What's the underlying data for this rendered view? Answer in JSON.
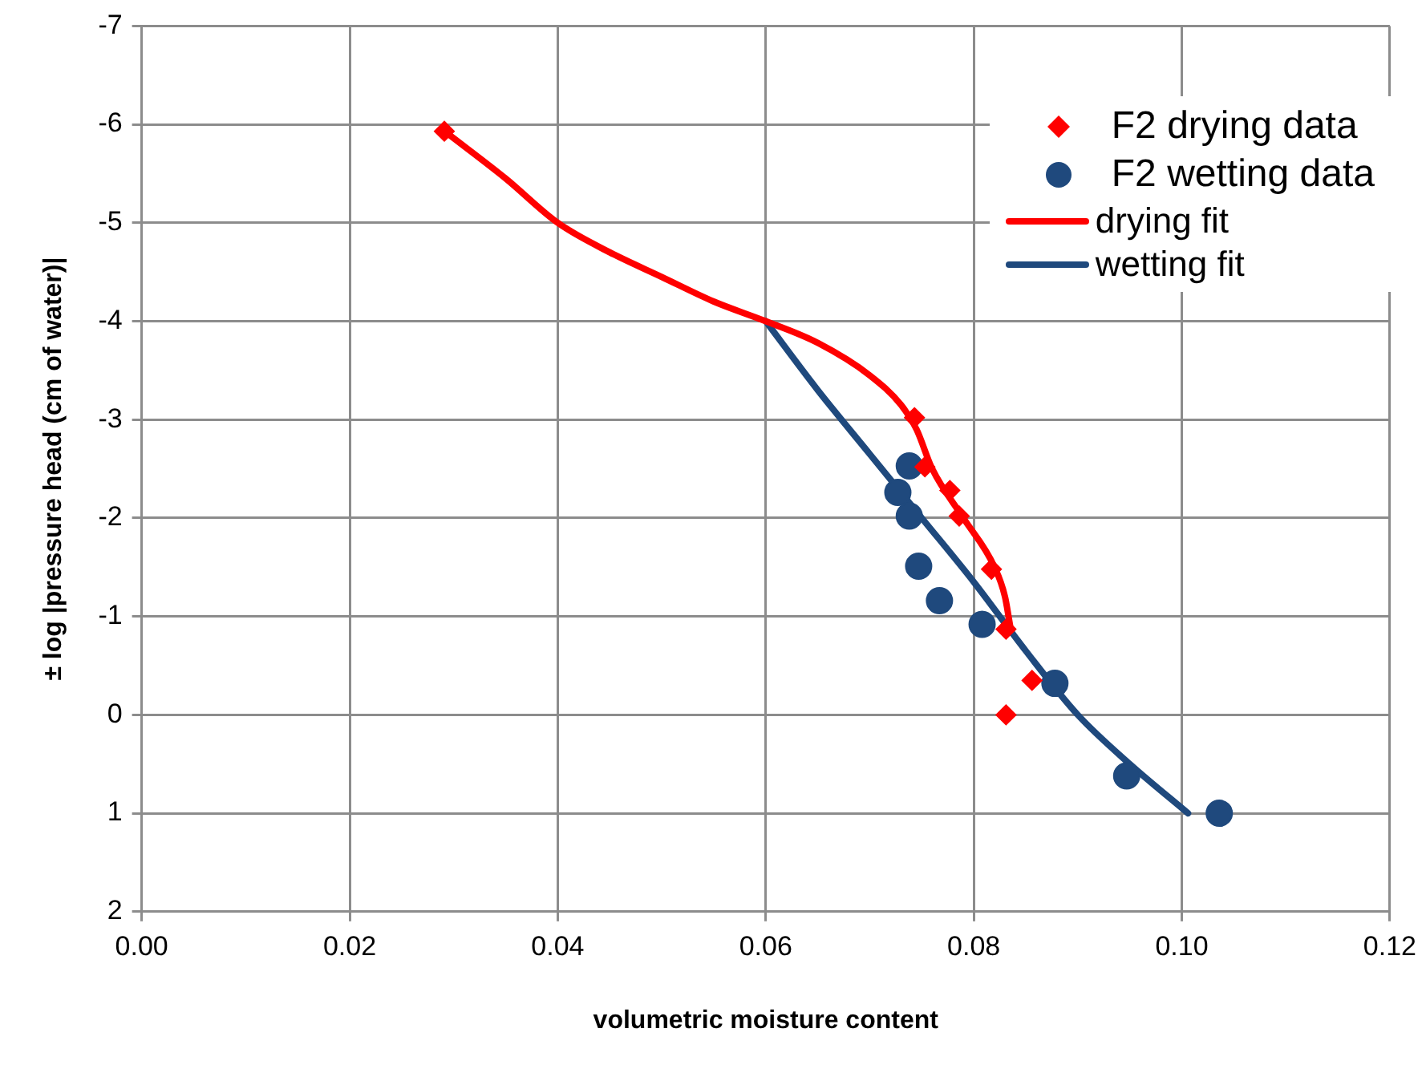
{
  "chart_data": {
    "type": "scatter",
    "xlabel": "volumetric moisture content",
    "ylabel": "± log |pressure head (cm of water)|",
    "xlim": [
      0,
      0.12
    ],
    "xticks": [
      {
        "value": 0,
        "label": "0.00"
      },
      {
        "value": 0.02,
        "label": "0.02"
      },
      {
        "value": 0.04,
        "label": "0.04"
      },
      {
        "value": 0.06,
        "label": "0.06"
      },
      {
        "value": 0.08,
        "label": "0.08"
      },
      {
        "value": 0.1,
        "label": "0.10"
      },
      {
        "value": 0.12,
        "label": "0.12"
      }
    ],
    "ylim": [
      2,
      -7
    ],
    "yticks": [
      -7,
      -6,
      -5,
      -4,
      -3,
      -2,
      -1,
      0,
      1,
      2
    ],
    "grid": true,
    "legend": "top right",
    "series": [
      {
        "name": "F2 drying data",
        "marker": "diamond",
        "color": "#ff0000",
        "x": [
          0.0291,
          0.0743,
          0.0753,
          0.0777,
          0.0786,
          0.0817,
          0.0831,
          0.0856,
          0.0831
        ],
        "values": [
          -5.93,
          -3.02,
          -2.52,
          -2.28,
          -2.02,
          -1.48,
          -0.87,
          -0.35,
          0
        ]
      },
      {
        "name": "F2 wetting data",
        "marker": "circle",
        "color": "#1f497d",
        "x": [
          0.0738,
          0.0727,
          0.0738,
          0.0747,
          0.0767,
          0.0808,
          0.0878,
          0.0947,
          0.1036
        ],
        "values": [
          -2.53,
          -2.26,
          -2.02,
          -1.51,
          -1.16,
          -0.92,
          -0.32,
          0.62,
          1
        ]
      },
      {
        "name": "drying fit",
        "type": "line",
        "marker": "none",
        "line_style": "solid",
        "color": "#ff0000",
        "x": [
          0.0295,
          0.035,
          0.04,
          0.045,
          0.05,
          0.055,
          0.06,
          0.065,
          0.07,
          0.073,
          0.0745,
          0.076,
          0.079,
          0.082,
          0.083,
          0.0835
        ],
        "values": [
          -5.9,
          -5.45,
          -5,
          -4.7,
          -4.45,
          -4.2,
          -4,
          -3.78,
          -3.45,
          -3.15,
          -2.9,
          -2.5,
          -2,
          -1.5,
          -1.2,
          -0.9
        ]
      },
      {
        "name": "wetting fit",
        "type": "line",
        "marker": "none",
        "line_style": "solid",
        "color": "#1f497d",
        "x": [
          0.06,
          0.065,
          0.07,
          0.075,
          0.08,
          0.085,
          0.09,
          0.095,
          0.1006
        ],
        "values": [
          -4,
          -3.3,
          -2.65,
          -2,
          -1.35,
          -0.65,
          0,
          0.5,
          1
        ]
      }
    ]
  }
}
